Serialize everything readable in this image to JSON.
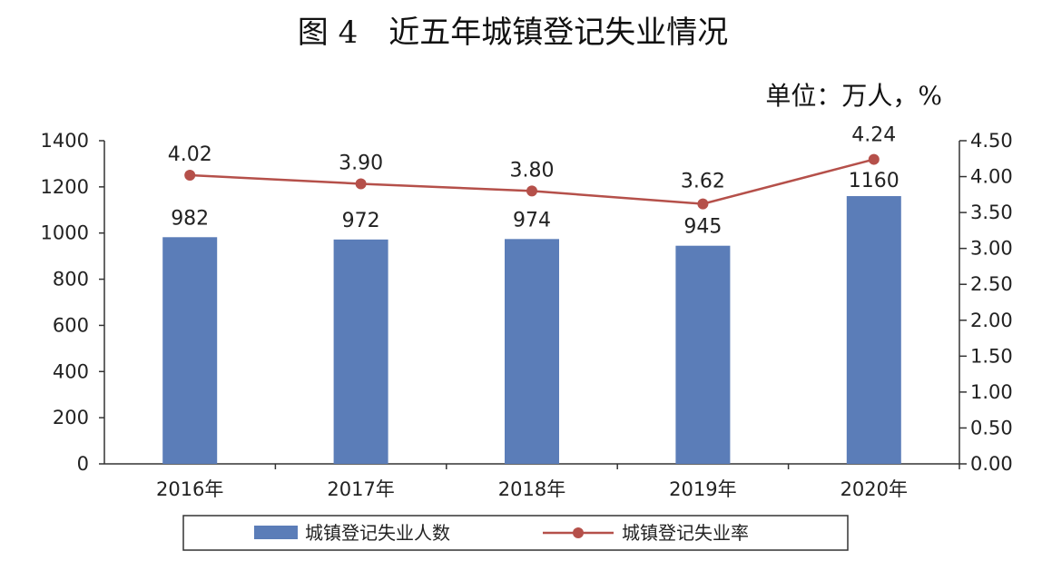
{
  "title": "图 4　近五年城镇登记失业情况",
  "unit_label": "单位：万人，%",
  "colors": {
    "bar": "#5b7db8",
    "line": "#b5504a",
    "axis": "#333333"
  },
  "chart_data": {
    "type": "bar",
    "categories": [
      "2016年",
      "2017年",
      "2018年",
      "2019年",
      "2020年"
    ],
    "series": [
      {
        "name": "城镇登记失业人数",
        "type": "bar",
        "axis": "left",
        "values": [
          982,
          972,
          974,
          945,
          1160
        ],
        "labels": [
          "982",
          "972",
          "974",
          "945",
          "1160"
        ]
      },
      {
        "name": "城镇登记失业率",
        "type": "line",
        "axis": "right",
        "values": [
          4.02,
          3.9,
          3.8,
          3.62,
          4.24
        ],
        "labels": [
          "4.02",
          "3.90",
          "3.80",
          "3.62",
          "4.24"
        ]
      }
    ],
    "ylim_left": [
      0,
      1400
    ],
    "ylim_right": [
      0,
      4.5
    ],
    "left_ticks": [
      "0",
      "200",
      "400",
      "600",
      "800",
      "1000",
      "1200",
      "1400"
    ],
    "right_ticks": [
      "0.00",
      "0.50",
      "1.00",
      "1.50",
      "2.00",
      "2.50",
      "3.00",
      "3.50",
      "4.00",
      "4.50"
    ],
    "legend_position": "bottom",
    "grid": false
  }
}
